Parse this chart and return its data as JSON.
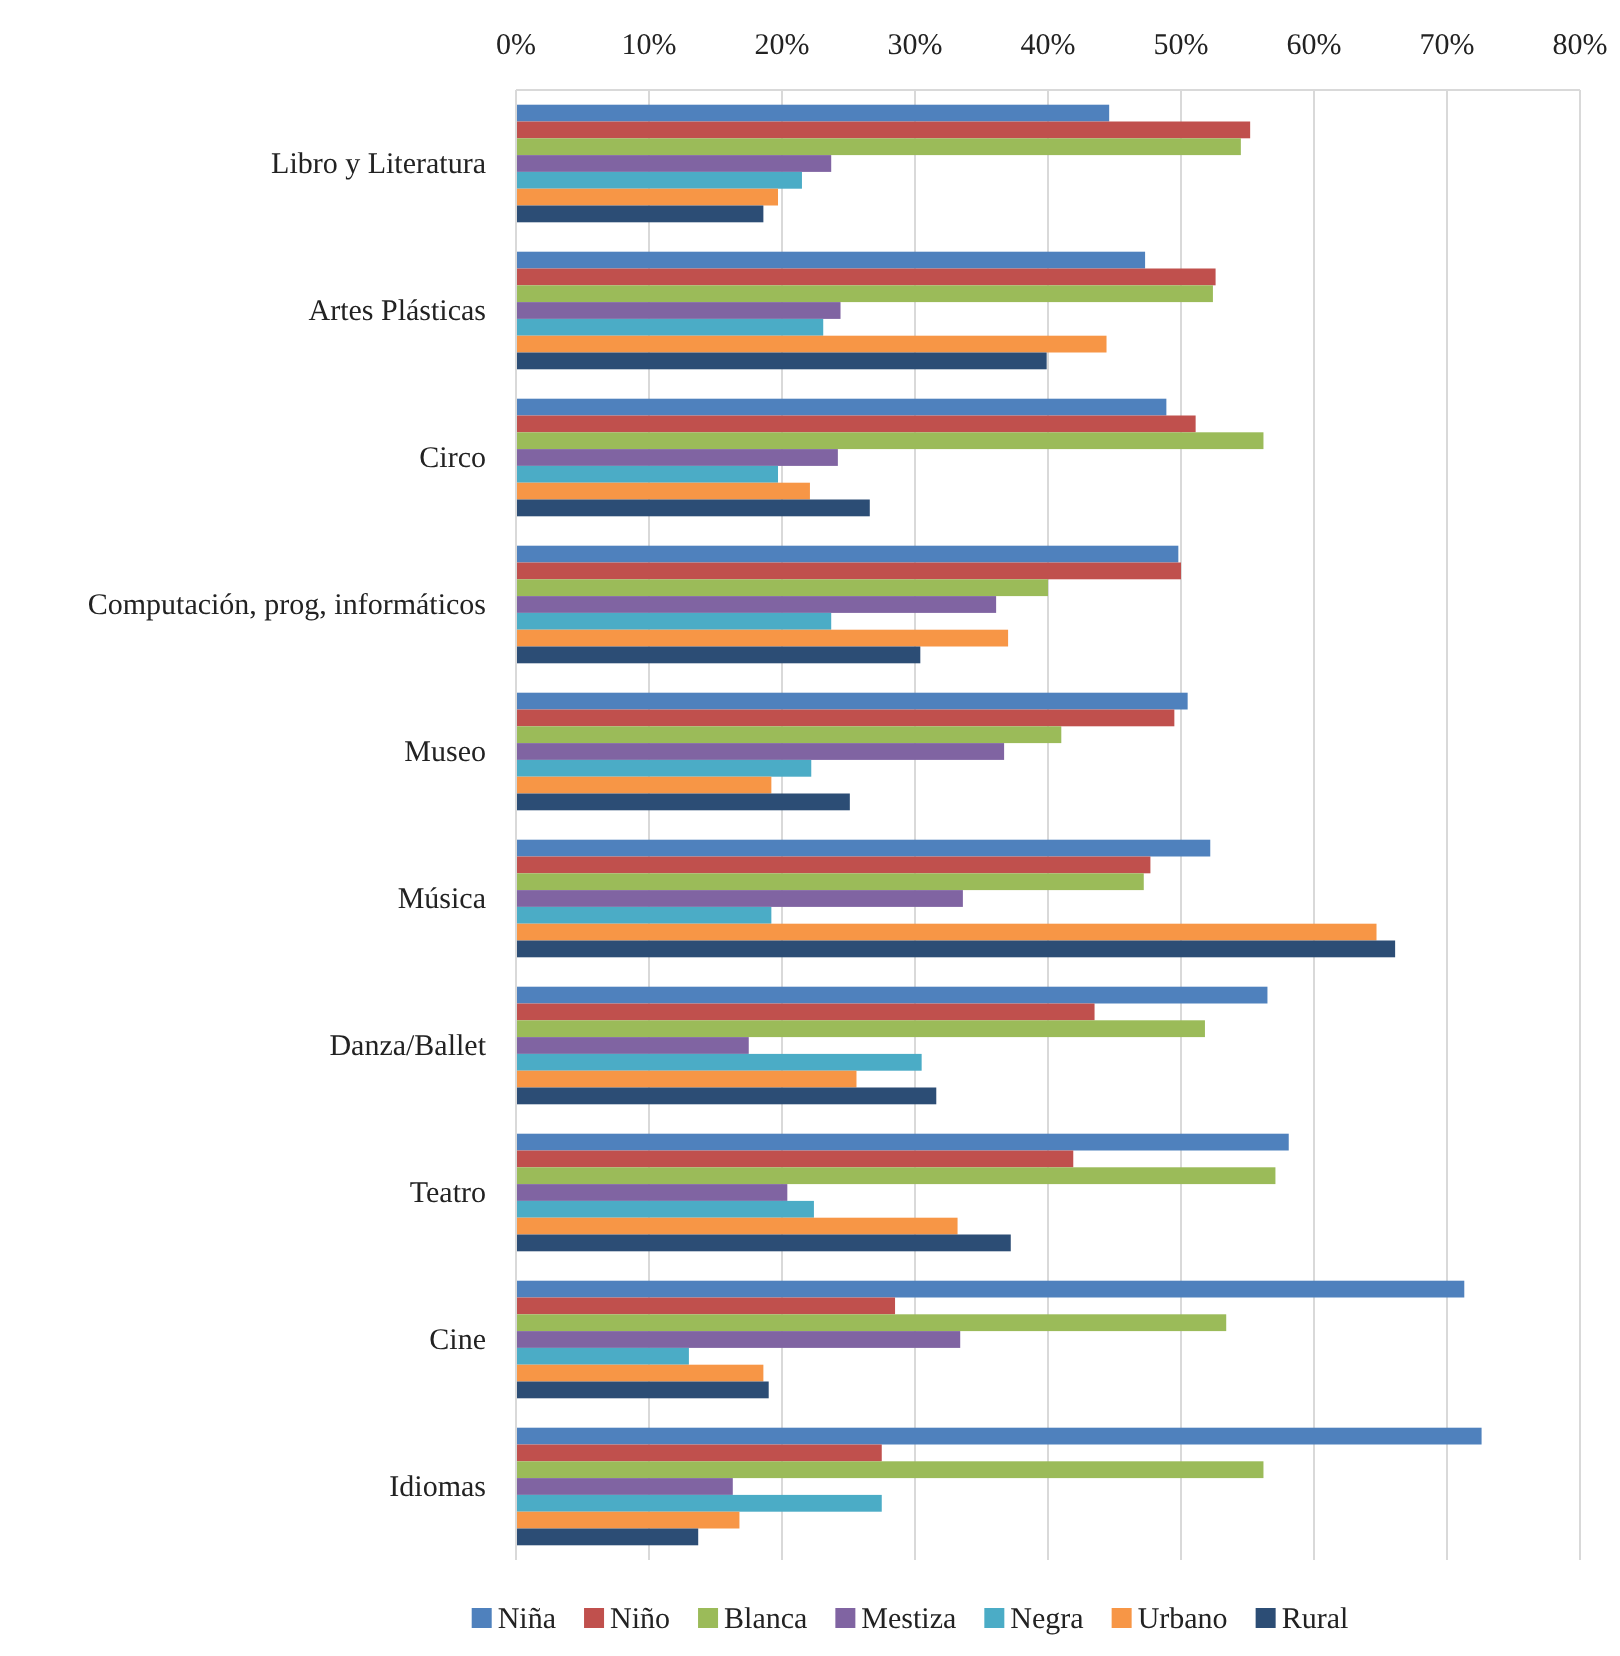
{
  "chart_data": {
    "type": "bar",
    "orientation": "horizontal",
    "categories": [
      "Libro y Literatura",
      "Artes Plásticas",
      "Circo",
      "Computación, prog, informáticos",
      "Museo",
      "Música",
      "Danza/Ballet",
      "Teatro",
      "Cine",
      "Idiomas"
    ],
    "series": [
      {
        "name": "Niña",
        "color": "#4f81bd",
        "values": [
          44.6,
          47.3,
          48.9,
          49.8,
          50.5,
          52.2,
          56.5,
          58.1,
          71.3,
          72.6
        ]
      },
      {
        "name": "Niño",
        "color": "#c0504d",
        "values": [
          55.2,
          52.6,
          51.1,
          50.0,
          49.5,
          47.7,
          43.5,
          41.9,
          28.5,
          27.5
        ]
      },
      {
        "name": "Blanca",
        "color": "#9bbb59",
        "values": [
          54.5,
          52.4,
          56.2,
          40.0,
          41.0,
          47.2,
          51.8,
          57.1,
          53.4,
          56.2
        ]
      },
      {
        "name": "Mestiza",
        "color": "#8064a2",
        "values": [
          23.7,
          24.4,
          24.2,
          36.1,
          36.7,
          33.6,
          17.5,
          20.4,
          33.4,
          16.3
        ]
      },
      {
        "name": "Negra",
        "color": "#4bacc6",
        "values": [
          21.5,
          23.1,
          19.7,
          23.7,
          22.2,
          19.2,
          30.5,
          22.4,
          13.0,
          27.5
        ]
      },
      {
        "name": "Urbano",
        "color": "#f79646",
        "values": [
          19.7,
          44.4,
          22.1,
          37.0,
          19.2,
          64.7,
          25.6,
          33.2,
          18.6,
          16.8
        ]
      },
      {
        "name": "Rural",
        "color": "#2c4d75",
        "values": [
          18.6,
          39.9,
          26.6,
          30.4,
          25.1,
          66.1,
          31.6,
          37.2,
          19.0,
          13.7
        ]
      }
    ],
    "xlim": [
      0,
      80
    ],
    "xticks": [
      {
        "value": 0,
        "label": "0%"
      },
      {
        "value": 10,
        "label": "10%"
      },
      {
        "value": 20,
        "label": "20%"
      },
      {
        "value": 30,
        "label": "30%"
      },
      {
        "value": 40,
        "label": "40%"
      },
      {
        "value": 50,
        "label": "50%"
      },
      {
        "value": 60,
        "label": "60%"
      },
      {
        "value": 70,
        "label": "70%"
      },
      {
        "value": 80,
        "label": "80%"
      }
    ],
    "grid": "x",
    "legend": "bottom"
  }
}
